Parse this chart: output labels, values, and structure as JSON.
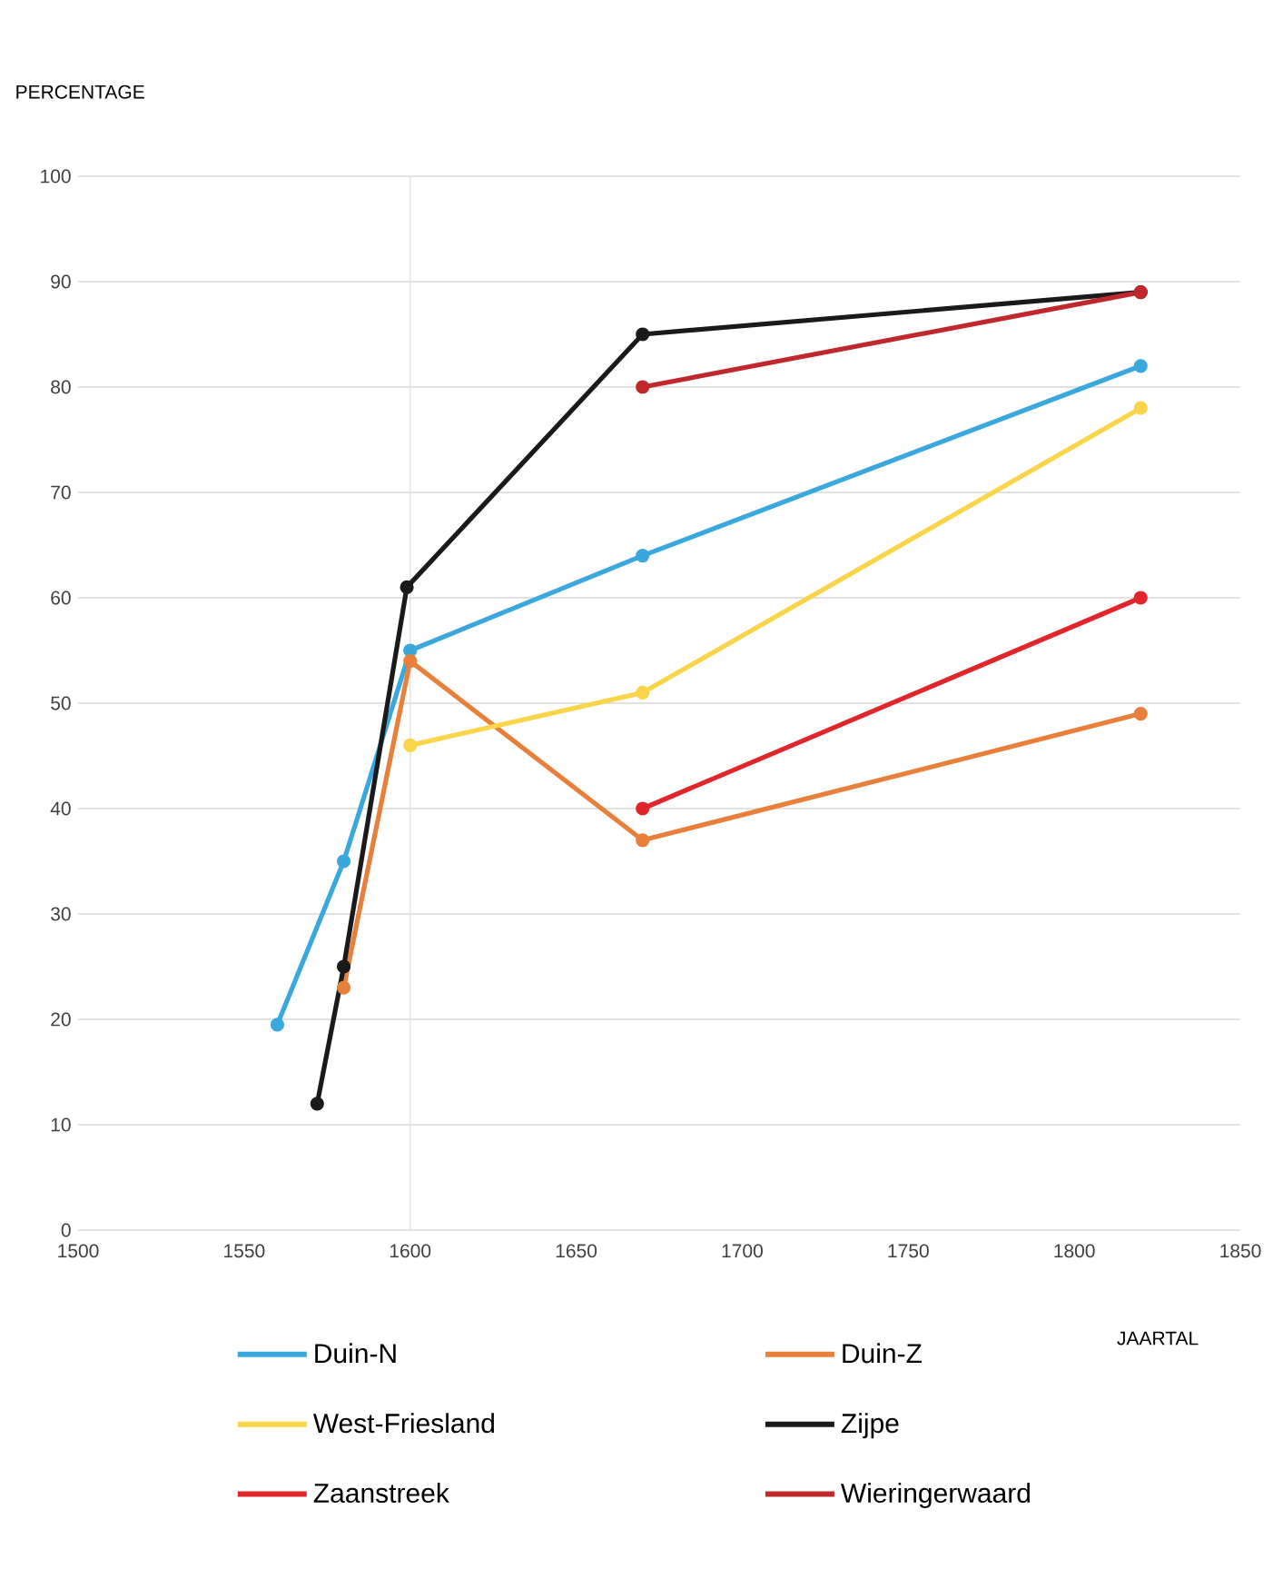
{
  "chart_data": {
    "type": "line",
    "xlabel": "JAARTAL",
    "ylabel": "PERCENTAGE",
    "xlim": [
      1500,
      1850
    ],
    "xticks": [
      1500,
      1550,
      1600,
      1650,
      1700,
      1750,
      1800,
      1850
    ],
    "ylim": [
      0,
      100
    ],
    "yticks": [
      0,
      10,
      20,
      30,
      40,
      50,
      60,
      70,
      80,
      90,
      100
    ],
    "grid": "y",
    "legend": "bottom",
    "marker": "circle",
    "line_style": "solid",
    "ref_lines": [
      {
        "axis": "x",
        "value": 1600,
        "color": "#e4e4e4"
      }
    ],
    "series": [
      {
        "name": "Duin-N",
        "color": "#3aa8dc",
        "x": [
          1560,
          1580,
          1600,
          1670,
          1820
        ],
        "values": [
          19.5,
          35,
          55,
          64,
          82
        ]
      },
      {
        "name": "Duin-Z",
        "color": "#e8803c",
        "x": [
          1580,
          1600,
          1670,
          1820
        ],
        "values": [
          23,
          54,
          37,
          49
        ]
      },
      {
        "name": "West-Friesland",
        "color": "#fad54a",
        "x": [
          1600,
          1670,
          1820
        ],
        "values": [
          46,
          51,
          78
        ]
      },
      {
        "name": "Zijpe",
        "color": "#1a1a1a",
        "x": [
          1572,
          1580,
          1599,
          1670,
          1820
        ],
        "values": [
          12,
          25,
          61,
          85,
          89
        ]
      },
      {
        "name": "Zaanstreek",
        "color": "#e0262b",
        "x": [
          1670,
          1820
        ],
        "values": [
          40,
          60
        ]
      },
      {
        "name": "Wieringerwaard",
        "color": "#c0282c",
        "x": [
          1670,
          1820
        ],
        "values": [
          80,
          89
        ]
      }
    ]
  }
}
